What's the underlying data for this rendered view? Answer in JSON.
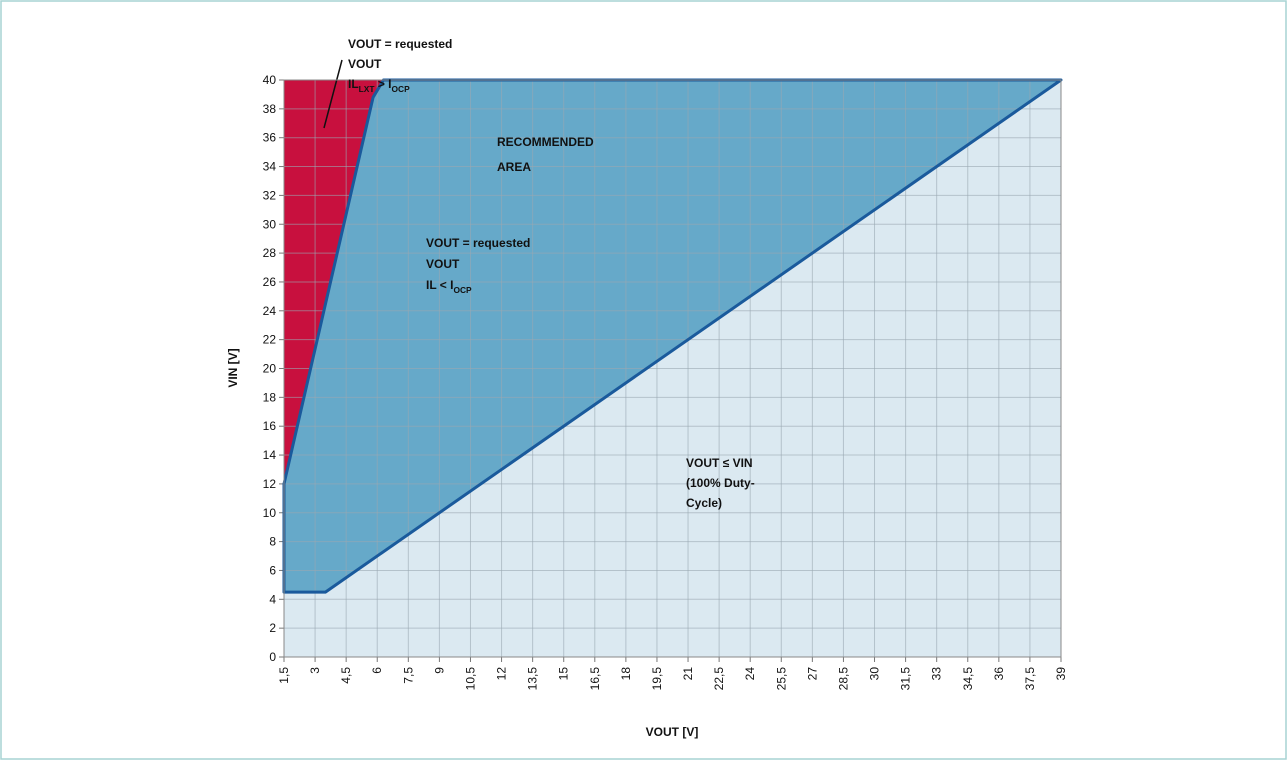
{
  "chart_data": {
    "type": "area",
    "xlabel": "VOUT [V]",
    "ylabel": "VIN [V]",
    "xlim": [
      1.5,
      39
    ],
    "ylim": [
      0,
      40
    ],
    "grid": true,
    "line_color": "#1a5a9c",
    "background_color": "#dbe9f1",
    "series": [
      {
        "color": "#c8103e",
        "x": [
          1.5,
          5.8,
          6.3,
          1.5
        ],
        "values": [
          12,
          38.8,
          40,
          40
        ]
      },
      {
        "color": "#66a9c9",
        "x": [
          1.5,
          1.5,
          5.8,
          6.3,
          39,
          3.5
        ],
        "values": [
          4.5,
          12,
          38.8,
          40,
          40,
          4.5
        ]
      }
    ],
    "xticks": [
      {
        "value": 1.5,
        "label": "1,5"
      },
      3,
      {
        "value": 4.5,
        "label": "4,5"
      },
      6,
      {
        "value": 7.5,
        "label": "7,5"
      },
      9,
      {
        "value": 10.5,
        "label": "10,5"
      },
      12,
      {
        "value": 13.5,
        "label": "13,5"
      },
      15,
      {
        "value": 16.5,
        "label": "16,5"
      },
      18,
      {
        "value": 19.5,
        "label": "19,5"
      },
      21,
      {
        "value": 22.5,
        "label": "22,5"
      },
      24,
      {
        "value": 25.5,
        "label": "25,5"
      },
      27,
      {
        "value": 28.5,
        "label": "28,5"
      },
      30,
      {
        "value": 31.5,
        "label": "31,5"
      },
      33,
      {
        "value": 34.5,
        "label": "34,5"
      },
      36,
      {
        "value": 37.5,
        "label": "37,5"
      },
      39
    ],
    "yticks": [
      0,
      2,
      4,
      6,
      8,
      10,
      12,
      14,
      16,
      18,
      20,
      22,
      24,
      26,
      28,
      30,
      32,
      34,
      36,
      38,
      40
    ],
    "annotations": [
      {
        "lines": [
          [
            {
              "text": "VOUT = requested"
            }
          ],
          [
            {
              "text": "VOUT"
            }
          ],
          [
            {
              "text": "IL"
            },
            {
              "text": "LXT",
              "sub": true
            },
            {
              "text": " > I"
            },
            {
              "text": "OCP",
              "sub": true
            }
          ]
        ]
      },
      {
        "lines": [
          [
            {
              "text": "RECOMMENDED"
            }
          ],
          [
            {
              "text": "AREA"
            }
          ]
        ]
      },
      {
        "lines": [
          [
            {
              "text": "VOUT = requested"
            }
          ],
          [
            {
              "text": "VOUT"
            }
          ],
          [
            {
              "text": "IL < I"
            },
            {
              "text": "OCP",
              "sub": true
            }
          ]
        ]
      },
      {
        "lines": [
          [
            {
              "text": "VOUT ≤ VIN"
            }
          ],
          [
            {
              "text": "(100% Duty-"
            }
          ],
          [
            {
              "text": "Cycle)"
            }
          ]
        ]
      }
    ]
  }
}
